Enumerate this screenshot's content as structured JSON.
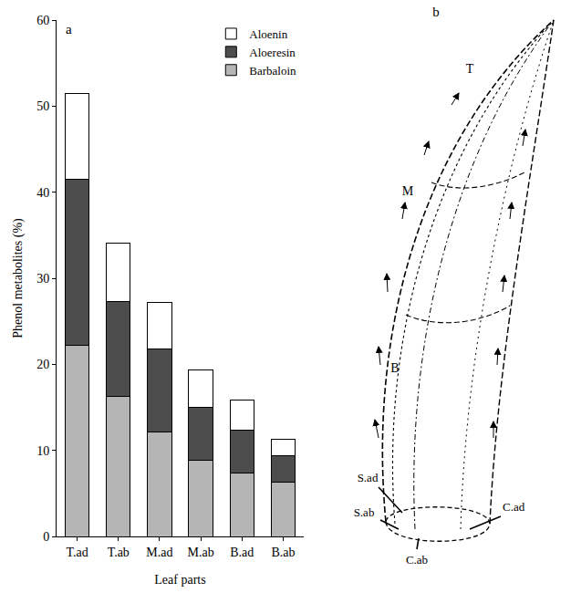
{
  "chart_data": {
    "type": "bar",
    "panel": "a",
    "x_label": "Leaf parts",
    "y_label": "Phenol metabolites (%)",
    "categories": [
      "T.ad",
      "T.ab",
      "M.ad",
      "M.ab",
      "B.ad",
      "B.ab"
    ],
    "series": [
      {
        "name": "Barbaloin",
        "color": "#b5b5b5",
        "values": [
          22.2,
          16.3,
          12.1,
          8.8,
          7.4,
          6.3
        ]
      },
      {
        "name": "Aloeresin",
        "color": "#4d4d4d",
        "values": [
          19.3,
          11.0,
          9.7,
          6.2,
          5.0,
          3.1
        ]
      },
      {
        "name": "Aloenin",
        "color": "#ffffff",
        "values": [
          10.0,
          6.8,
          5.4,
          4.3,
          3.5,
          1.9
        ]
      }
    ],
    "stacked": true,
    "ylim": [
      0,
      60
    ],
    "yticks": [
      0,
      10,
      20,
      30,
      40,
      50,
      60
    ],
    "grid": false,
    "legend": "top right"
  },
  "diagram": {
    "panel": "b",
    "zones": [
      "T",
      "M",
      "B"
    ],
    "sides": [
      "S.ad",
      "S.ab",
      "C.ab",
      "C.ad"
    ]
  }
}
